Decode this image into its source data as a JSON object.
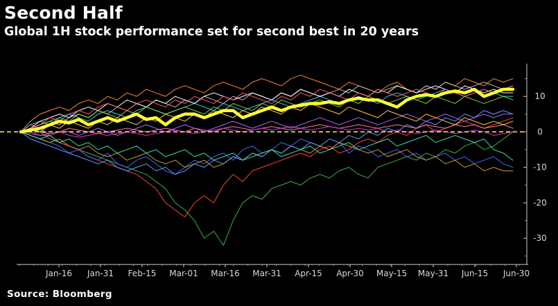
{
  "header": {
    "title": "Second Half",
    "subtitle": "Global 1H stock performance set for second best in 20 years"
  },
  "footer": {
    "source": "Source: Bloomberg"
  },
  "chart_data": {
    "type": "line",
    "title": "Second Half",
    "subtitle": "Global 1H stock performance set for second best in 20 years",
    "x_ticks": [
      "Jan-16",
      "Jan-31",
      "Feb-15",
      "Mar-01",
      "Mar-16",
      "Mar-31",
      "Apr-15",
      "Apr-30",
      "May-15",
      "May-31",
      "Jun-15",
      "Jun-30"
    ],
    "y_ticks": [
      10,
      0,
      -10,
      -20,
      -30
    ],
    "ylim": [
      -37,
      20
    ],
    "y_axis_side": "right",
    "grid": false,
    "baseline": {
      "y": 0,
      "style": "dashed",
      "color": "#f5e66a"
    },
    "series": [
      {
        "color": "#ffff33",
        "highlight": true,
        "values": [
          0,
          0.5,
          1,
          2,
          3,
          2.5,
          3.5,
          2,
          3,
          4,
          3,
          4,
          5,
          3.5,
          4,
          2,
          4,
          5,
          5,
          4,
          5,
          6,
          6,
          4,
          5,
          6,
          7,
          6,
          7,
          7.5,
          8,
          8,
          8.5,
          8,
          9,
          9.5,
          9,
          9,
          8,
          7,
          9,
          10,
          10.5,
          10,
          11,
          11.5,
          11,
          12,
          10,
          11,
          12,
          12
        ]
      },
      {
        "color": "#3cb34a",
        "values": [
          0,
          1,
          0,
          -2,
          -3,
          -4,
          -5,
          -6,
          -7,
          -8,
          -9,
          -10,
          -11,
          -12,
          -14,
          -16,
          -20,
          -22,
          -25,
          -30,
          -28,
          -32,
          -25,
          -20,
          -18,
          -19,
          -16,
          -15,
          -14,
          -15,
          -13,
          -12,
          -13,
          -11,
          -10,
          -12,
          -13,
          -10,
          -9,
          -8,
          -7,
          -8,
          -6,
          -7,
          -5,
          -6,
          -4,
          -3,
          -5,
          -4,
          -2,
          0
        ]
      },
      {
        "color": "#ff4433",
        "values": [
          0,
          2,
          1,
          -1,
          -3,
          -4,
          -5,
          -7,
          -8,
          -9,
          -10,
          -11,
          -12,
          -14,
          -16,
          -20,
          -22,
          -24,
          -20,
          -18,
          -20,
          -15,
          -12,
          -14,
          -11,
          -10,
          -9,
          -8,
          -7,
          -6,
          -7,
          -5,
          -4,
          -6,
          -5,
          -3,
          -2,
          -3,
          -1,
          0,
          -1,
          1,
          2,
          0,
          1,
          2,
          3,
          2,
          1,
          2,
          3,
          4
        ]
      },
      {
        "color": "#4466ff",
        "values": [
          0,
          -1,
          -2,
          -3,
          -4,
          -6,
          -5,
          -7,
          -8,
          -6,
          -9,
          -10,
          -8,
          -7,
          -9,
          -11,
          -12,
          -10,
          -8,
          -9,
          -7,
          -6,
          -8,
          -5,
          -4,
          -6,
          -5,
          -3,
          -4,
          -2,
          -3,
          -4,
          -5,
          -3,
          -6,
          -4,
          -5,
          -7,
          -6,
          -5,
          -7,
          -6,
          -8,
          -7,
          -6,
          -8,
          -7,
          -9,
          -8,
          -7,
          -9,
          -10
        ]
      },
      {
        "color": "#ff8833",
        "values": [
          0,
          3,
          5,
          6,
          7,
          6,
          8,
          9,
          8,
          10,
          9,
          11,
          10,
          12,
          11,
          10,
          12,
          13,
          12,
          11,
          13,
          14,
          13,
          12,
          14,
          15,
          14,
          13,
          15,
          16,
          15,
          14,
          13,
          12,
          14,
          13,
          12,
          11,
          13,
          14,
          12,
          11,
          13,
          12,
          14,
          13,
          15,
          14,
          13,
          15,
          14,
          15
        ]
      },
      {
        "color": "#ff7799",
        "values": [
          0,
          0.5,
          0,
          -0.5,
          0,
          1,
          0.5,
          0,
          -0.5,
          0,
          0.5,
          1,
          0.5,
          0,
          0.5,
          1,
          0.5,
          0,
          1,
          0.5,
          0,
          1,
          1.5,
          1,
          0.5,
          1,
          1.5,
          1,
          0.5,
          1,
          1.5,
          2,
          1.5,
          1,
          1.5,
          2,
          1.5,
          1,
          1.5,
          2,
          1.5,
          1,
          2,
          1.5,
          1,
          2,
          1.5,
          2,
          1,
          1.5,
          2,
          1
        ]
      },
      {
        "color": "#dd33dd",
        "values": [
          0,
          -0.5,
          -1,
          -0.5,
          0,
          -1,
          -1.5,
          -1,
          -0.5,
          -1,
          -0.5,
          0,
          -0.5,
          -1,
          -0.5,
          0,
          0.5,
          0,
          -0.5,
          0,
          0.5,
          1,
          0.5,
          0,
          0.5,
          1,
          0.5,
          1,
          1.5,
          1,
          0.5,
          1,
          1.5,
          1,
          0.5,
          1,
          0.5,
          1,
          0,
          0.5,
          0,
          -0.5,
          0,
          0.5,
          0,
          -0.5,
          0,
          0.5,
          0,
          -1,
          -0.5,
          0
        ]
      },
      {
        "color": "#33ccdd",
        "values": [
          0,
          2,
          3,
          2,
          4,
          5,
          4,
          3,
          5,
          6,
          5,
          4,
          6,
          7,
          6,
          5,
          6,
          7,
          8,
          7,
          6,
          8,
          7,
          6,
          7,
          8,
          9,
          8,
          7,
          8,
          9,
          10,
          9,
          8,
          9,
          10,
          9,
          8,
          10,
          11,
          10,
          9,
          10,
          11,
          12,
          11,
          10,
          11,
          12,
          11,
          10,
          10
        ]
      },
      {
        "color": "#bbbbbb",
        "values": [
          0,
          1,
          2,
          3,
          2,
          4,
          5,
          4,
          6,
          5,
          7,
          6,
          8,
          7,
          9,
          8,
          7,
          9,
          8,
          10,
          9,
          8,
          10,
          9,
          11,
          10,
          9,
          11,
          10,
          12,
          11,
          10,
          11,
          12,
          11,
          13,
          12,
          11,
          12,
          13,
          12,
          11,
          13,
          12,
          14,
          13,
          12,
          13,
          14,
          13,
          12,
          13
        ]
      },
      {
        "color": "#ffffff",
        "values": [
          0,
          1,
          3,
          4,
          5,
          4,
          6,
          7,
          6,
          8,
          7,
          9,
          8,
          7,
          9,
          8,
          10,
          9,
          8,
          10,
          11,
          10,
          9,
          10,
          11,
          10,
          9,
          11,
          10,
          12,
          11,
          10,
          11,
          10,
          12,
          11,
          10,
          12,
          11,
          13,
          12,
          11,
          12,
          13,
          12,
          11,
          13,
          12,
          11,
          12,
          11,
          11
        ]
      },
      {
        "color": "#88cc44",
        "values": [
          0,
          1,
          2,
          3,
          4,
          3,
          5,
          4,
          6,
          5,
          4,
          6,
          5,
          7,
          6,
          5,
          6,
          7,
          6,
          5,
          7,
          6,
          8,
          7,
          6,
          8,
          7,
          9,
          8,
          7,
          8,
          9,
          8,
          7,
          9,
          8,
          10,
          9,
          8,
          9,
          10,
          9,
          8,
          10,
          9,
          8,
          10,
          9,
          8,
          9,
          10,
          9
        ]
      },
      {
        "color": "#ff5577",
        "values": [
          0,
          1,
          2,
          4,
          3,
          5,
          6,
          5,
          7,
          8,
          7,
          6,
          8,
          9,
          8,
          7,
          9,
          8,
          10,
          9,
          8,
          10,
          9,
          11,
          10,
          9,
          8,
          10,
          9,
          11,
          10,
          12,
          11,
          10,
          9,
          11,
          10,
          12,
          11,
          10,
          11,
          12,
          11,
          10,
          12,
          11,
          10,
          11,
          12,
          11,
          12,
          13
        ]
      },
      {
        "color": "#cc9933",
        "values": [
          0,
          -1,
          -2,
          -3,
          -2,
          -4,
          -5,
          -4,
          -6,
          -7,
          -6,
          -8,
          -7,
          -6,
          -8,
          -9,
          -8,
          -10,
          -9,
          -8,
          -10,
          -9,
          -7,
          -8,
          -6,
          -7,
          -5,
          -6,
          -4,
          -5,
          -6,
          -4,
          -5,
          -3,
          -4,
          -5,
          -6,
          -5,
          -7,
          -6,
          -5,
          -7,
          -8,
          -7,
          -9,
          -8,
          -10,
          -9,
          -11,
          -10,
          -11,
          -11
        ]
      },
      {
        "color": "#6699ff",
        "values": [
          0,
          -2,
          -3,
          -4,
          -5,
          -6,
          -7,
          -8,
          -9,
          -8,
          -10,
          -11,
          -10,
          -9,
          -11,
          -10,
          -12,
          -11,
          -9,
          -10,
          -8,
          -9,
          -7,
          -8,
          -6,
          -7,
          -5,
          -6,
          -4,
          -5,
          -3,
          -4,
          -2,
          -3,
          -1,
          -2,
          0,
          -1,
          1,
          0,
          2,
          1,
          3,
          2,
          4,
          3,
          5,
          4,
          6,
          5,
          6,
          5
        ]
      },
      {
        "color": "#aa66ff",
        "values": [
          0,
          0,
          -1,
          -1,
          0,
          0,
          -1,
          0,
          1,
          0,
          -1,
          0,
          1,
          2,
          1,
          0,
          1,
          2,
          1,
          0,
          1,
          2,
          3,
          2,
          1,
          2,
          3,
          2,
          1,
          2,
          3,
          4,
          3,
          2,
          3,
          4,
          3,
          2,
          3,
          4,
          5,
          4,
          3,
          4,
          5,
          4,
          3,
          4,
          5,
          4,
          5,
          5
        ]
      },
      {
        "color": "#ffcc44",
        "values": [
          0,
          1,
          0,
          2,
          1,
          3,
          2,
          1,
          3,
          2,
          4,
          3,
          2,
          4,
          3,
          5,
          4,
          3,
          5,
          4,
          6,
          5,
          4,
          6,
          5,
          7,
          6,
          5,
          7,
          6,
          8,
          7,
          6,
          5,
          7,
          6,
          5,
          4,
          6,
          5,
          4,
          3,
          5,
          4,
          3,
          2,
          4,
          3,
          2,
          3,
          2,
          3
        ]
      },
      {
        "color": "#44ddaa",
        "values": [
          0,
          -1,
          -2,
          -1,
          -3,
          -2,
          -4,
          -3,
          -5,
          -4,
          -6,
          -5,
          -4,
          -6,
          -5,
          -7,
          -6,
          -5,
          -7,
          -6,
          -8,
          -7,
          -6,
          -8,
          -7,
          -6,
          -5,
          -7,
          -6,
          -5,
          -4,
          -6,
          -5,
          -4,
          -3,
          -5,
          -4,
          -3,
          -2,
          -4,
          -3,
          -2,
          -1,
          -3,
          -2,
          -1,
          -2,
          -3,
          -2,
          -5,
          -6,
          -8
        ]
      }
    ]
  }
}
